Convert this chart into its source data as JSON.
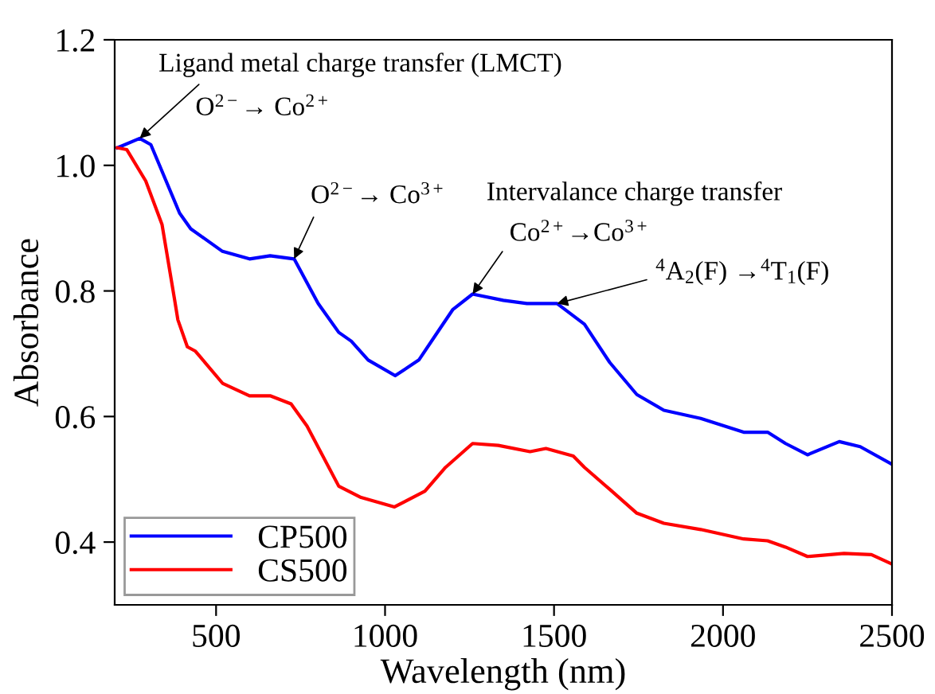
{
  "chart_data": {
    "type": "line",
    "xlabel": "Wavelength (nm)",
    "ylabel": "Absorbance",
    "xlim": [
      200,
      2500
    ],
    "xticks": [
      500,
      1000,
      1500,
      2000,
      2500
    ],
    "ylim": [
      0.3,
      1.2
    ],
    "yticks": [
      0.4,
      0.6,
      0.8,
      {
        "value": 1,
        "label": "1.0"
      },
      1.2
    ],
    "grid": false,
    "legend": "bottom left",
    "line_style": "solid",
    "marker": "none",
    "series": [
      {
        "name": "CP500",
        "color": "#0000ff",
        "x": [
          208,
          274,
          307,
          392,
          425,
          519,
          599,
          660,
          731,
          802,
          863,
          900,
          950,
          1030,
          1100,
          1150,
          1200,
          1259,
          1350,
          1420,
          1509,
          1590,
          1665,
          1745,
          1825,
          1934,
          2061,
          2132,
          2185,
          2250,
          2344,
          2406,
          2500
        ],
        "values": [
          1.028,
          1.043,
          1.033,
          0.924,
          0.899,
          0.863,
          0.851,
          0.856,
          0.851,
          0.78,
          0.734,
          0.72,
          0.69,
          0.665,
          0.69,
          0.73,
          0.77,
          0.795,
          0.785,
          0.78,
          0.78,
          0.747,
          0.686,
          0.635,
          0.61,
          0.597,
          0.575,
          0.575,
          0.557,
          0.539,
          0.56,
          0.552,
          0.524
        ]
      },
      {
        "name": "CS500",
        "color": "#ff0000",
        "x": [
          208,
          236,
          292,
          340,
          377,
          387,
          415,
          439,
          519,
          599,
          660,
          722,
          769,
          863,
          929,
          1028,
          1118,
          1179,
          1259,
          1335,
          1429,
          1476,
          1557,
          1590,
          1665,
          1745,
          1825,
          1934,
          2061,
          2132,
          2185,
          2250,
          2358,
          2439,
          2500
        ],
        "values": [
          1.028,
          1.025,
          0.975,
          0.906,
          0.787,
          0.754,
          0.711,
          0.704,
          0.653,
          0.633,
          0.633,
          0.62,
          0.585,
          0.489,
          0.471,
          0.456,
          0.481,
          0.519,
          0.557,
          0.554,
          0.544,
          0.549,
          0.537,
          0.519,
          0.484,
          0.446,
          0.43,
          0.42,
          0.405,
          0.402,
          0.392,
          0.377,
          0.382,
          0.38,
          0.365
        ]
      }
    ],
    "annotations": [
      {
        "text": "Ligand metal charge transfer (LMCT)",
        "x": 274,
        "y": 1.043
      },
      "O$^{2−}$→ Co$^{2+}$",
      {
        "text": "O$^{2−}$→ Co$^{3+}$",
        "x": 731,
        "y": 0.851
      },
      "Intervalance charge transfer",
      {
        "text": "Co$^{2+}$→Co$^{3+}$",
        "x": 1259,
        "y": 0.795
      },
      {
        "text": "$^{4}$A$_{2}$(F) →$^{4}$T$_{1}$(F)",
        "x": 1509,
        "y": 0.78
      }
    ]
  }
}
